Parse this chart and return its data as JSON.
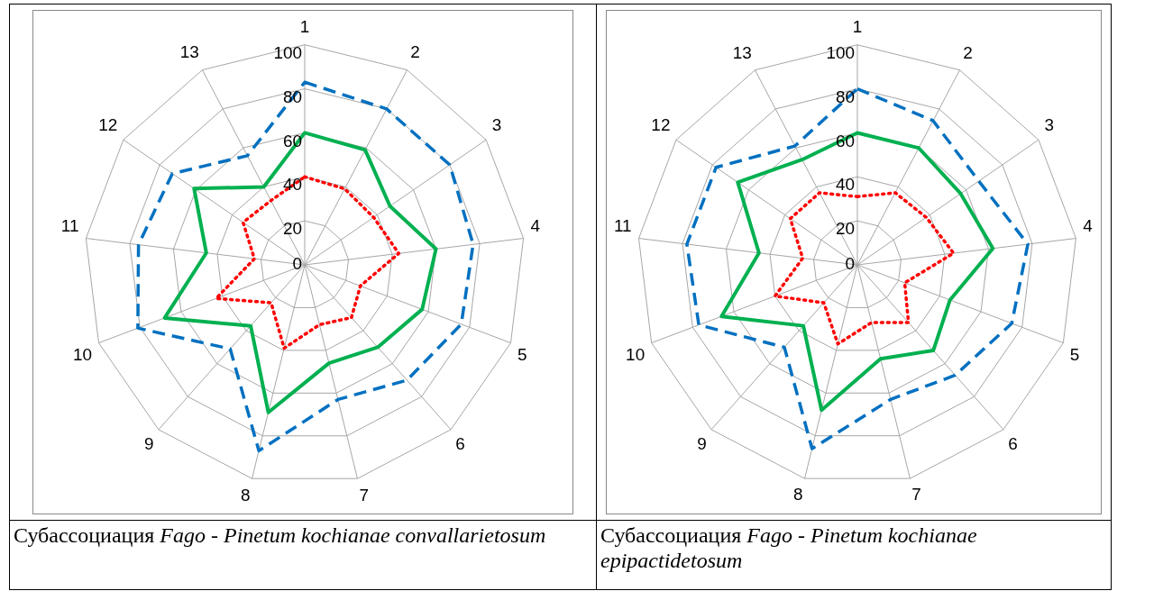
{
  "chart_data": [
    {
      "type": "radar",
      "categories": [
        "1",
        "2",
        "3",
        "4",
        "5",
        "6",
        "7",
        "8",
        "9",
        "10",
        "11",
        "12",
        "13"
      ],
      "ylim": [
        0,
        100
      ],
      "yticks": [
        0,
        20,
        40,
        60,
        80,
        100
      ],
      "grid": true,
      "legend": false,
      "marker": "none",
      "annotations": [
        "Субассоциация  Fago - Pinetum kochianae convallarietosum"
      ],
      "series": [
        {
          "color": "#0070c0",
          "line_style": "dashed",
          "values": [
            83,
            80,
            80,
            77,
            76,
            70,
            63,
            87,
            51,
            81,
            76,
            73,
            56
          ]
        },
        {
          "color": "#00b050",
          "line_style": "solid",
          "values": [
            60,
            59,
            47,
            60,
            57,
            50,
            46,
            69,
            37,
            68,
            45,
            61,
            40
          ]
        },
        {
          "color": "#ff0000",
          "line_style": "dotted",
          "values": [
            40,
            39,
            38,
            43,
            27,
            32,
            28,
            39,
            23,
            43,
            23,
            34,
            33
          ]
        }
      ]
    },
    {
      "type": "radar",
      "categories": [
        "1",
        "2",
        "3",
        "4",
        "5",
        "6",
        "7",
        "8",
        "9",
        "10",
        "11",
        "12",
        "13"
      ],
      "ylim": [
        0,
        100
      ],
      "yticks": [
        0,
        20,
        40,
        60,
        80,
        100
      ],
      "grid": true,
      "legend": false,
      "marker": "none",
      "annotations": [
        "Субассоциация Fago - Pinetum kochianae epipactidetosum"
      ],
      "series": [
        {
          "color": "#0070c0",
          "line_style": "dashed",
          "values": [
            80,
            74,
            67,
            78,
            75,
            67,
            63,
            86,
            50,
            77,
            78,
            78,
            61
          ]
        },
        {
          "color": "#00b050",
          "line_style": "solid",
          "values": [
            60,
            60,
            57,
            62,
            45,
            52,
            44,
            68,
            37,
            66,
            45,
            66,
            54
          ]
        },
        {
          "color": "#ff0000",
          "line_style": "dotted",
          "values": [
            31,
            37,
            38,
            44,
            23,
            35,
            27,
            37,
            23,
            40,
            25,
            37,
            37
          ]
        }
      ]
    }
  ]
}
